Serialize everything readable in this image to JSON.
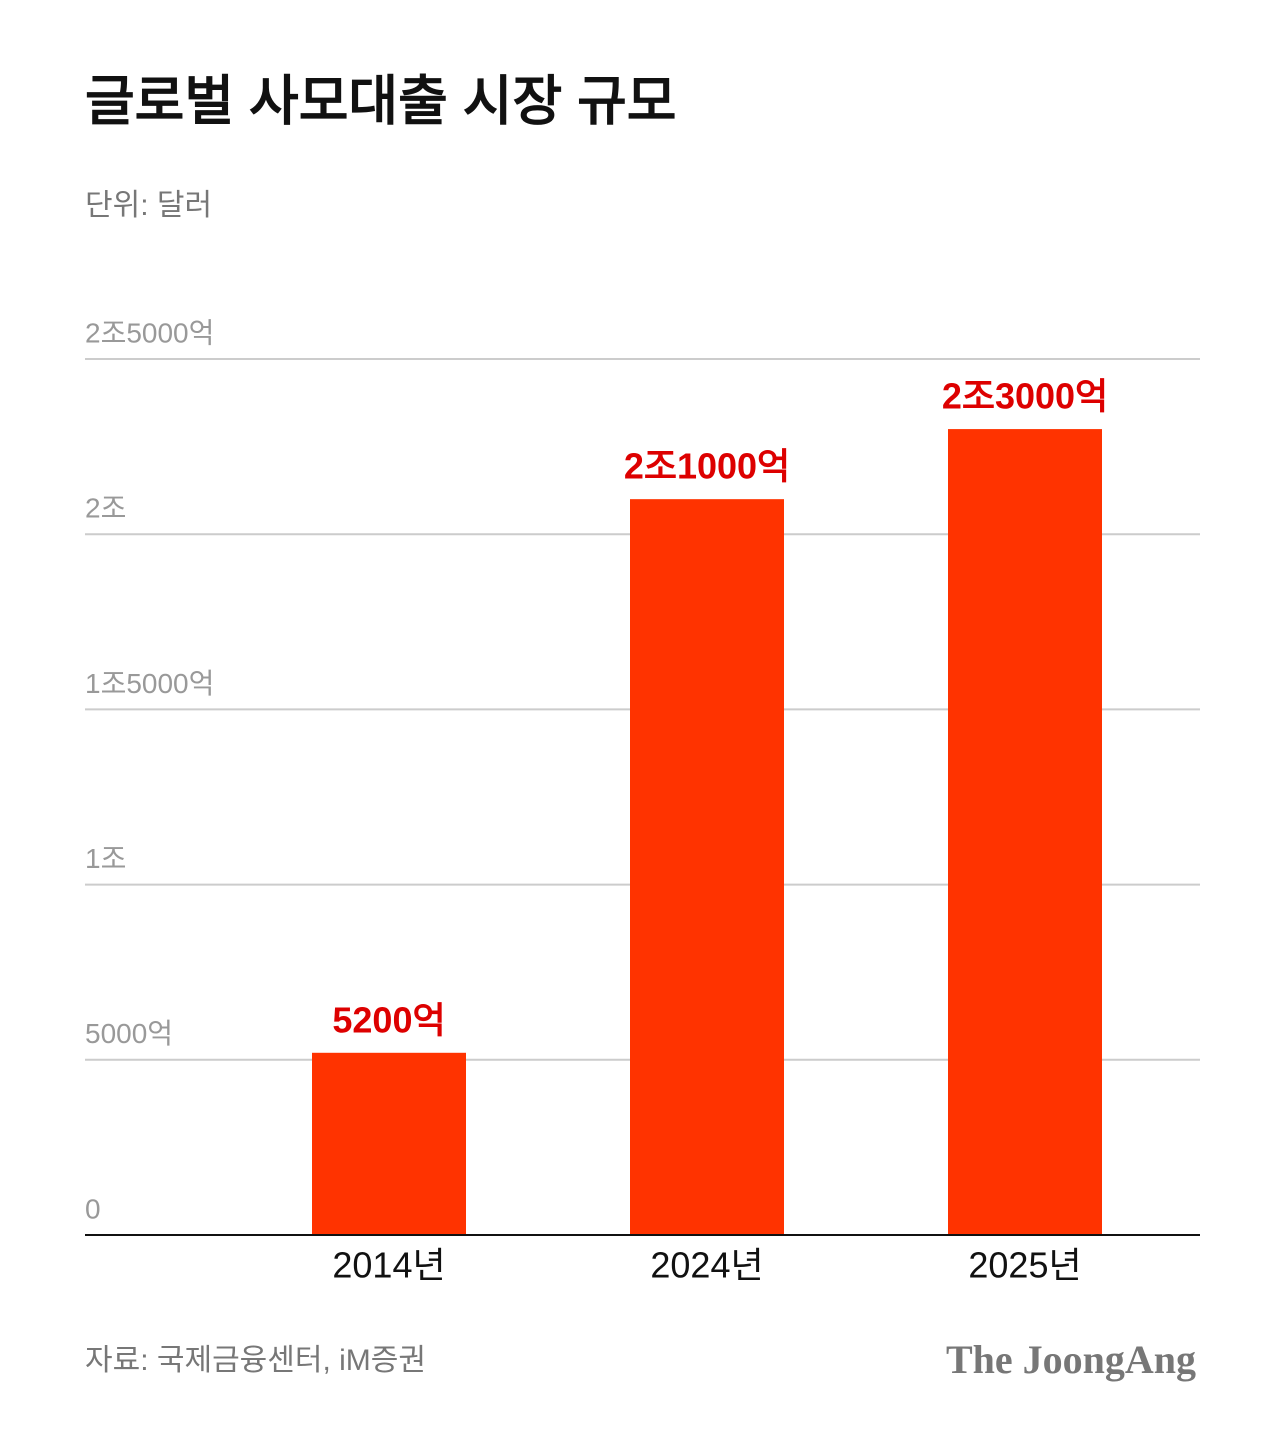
{
  "chart_data": {
    "type": "bar",
    "title": "글로벌 사모대출 시장 규모",
    "subtitle": "단위: 달러",
    "categories": [
      "2014년",
      "2024년",
      "2025년"
    ],
    "values": [
      5200,
      21000,
      23000
    ],
    "value_labels": [
      "5200억",
      "2조1000억",
      "2조3000억"
    ],
    "color": "#ff3300",
    "ylim": [
      0,
      25000
    ],
    "yticks": [
      0,
      {
        "value": 5000,
        "label": "5000억"
      },
      {
        "value": 10000,
        "label": "1조"
      },
      {
        "value": 15000,
        "label": "1조5000억"
      },
      {
        "value": 20000,
        "label": "2조"
      },
      {
        "value": 25000,
        "label": "2조5000억"
      }
    ],
    "grid": true,
    "source": "자료: 국제금융센터, iM증권",
    "publisher": "The JoongAng"
  }
}
